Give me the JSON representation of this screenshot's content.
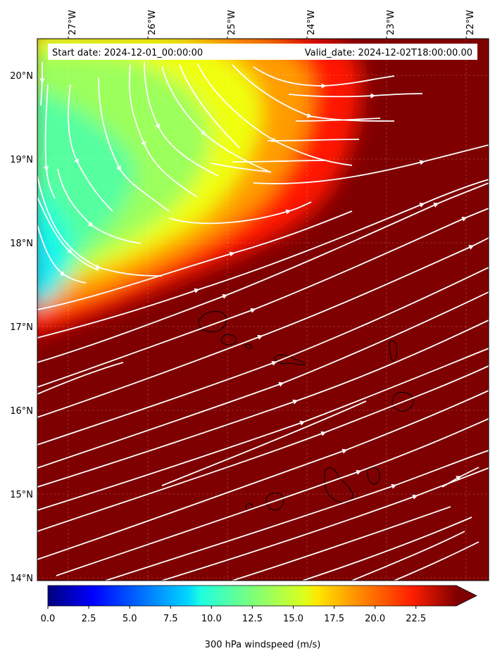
{
  "figure": {
    "start_label": "Start date: 2024-12-01_00:00:00",
    "valid_label": "Valid_date: 2024-12-02T18:00:00.00",
    "colorbar_label": "300 hPa windspeed (m/s)"
  },
  "map": {
    "lon_range": [
      -27.35,
      -21.6
    ],
    "lat_range": [
      13.95,
      20.4
    ],
    "lon_ticks": [
      {
        "value": -27,
        "label": "27°W"
      },
      {
        "value": -26,
        "label": "26°W"
      },
      {
        "value": -25,
        "label": "25°W"
      },
      {
        "value": -24,
        "label": "24°W"
      },
      {
        "value": -23,
        "label": "23°W"
      },
      {
        "value": -22,
        "label": "22°W"
      }
    ],
    "lat_ticks": [
      {
        "value": 20,
        "label": "20°N"
      },
      {
        "value": 19,
        "label": "19°N"
      },
      {
        "value": 18,
        "label": "18°N"
      },
      {
        "value": 17,
        "label": "17°N"
      },
      {
        "value": 16,
        "label": "16°N"
      },
      {
        "value": 15,
        "label": "15°N"
      },
      {
        "value": 14,
        "label": "14°N"
      }
    ],
    "gridlines": true,
    "coastlines": "Cape Verde islands",
    "streamline_color": "#ffffff"
  },
  "colorbar": {
    "min": 0,
    "max": 25,
    "extend": "max",
    "colormap": "jet",
    "ticks": [
      {
        "value": 0,
        "label": "0.0"
      },
      {
        "value": 2.5,
        "label": "2.5"
      },
      {
        "value": 5,
        "label": "5.0"
      },
      {
        "value": 7.5,
        "label": "7.5"
      },
      {
        "value": 10,
        "label": "10.0"
      },
      {
        "value": 12.5,
        "label": "12.5"
      },
      {
        "value": 15,
        "label": "15.0"
      },
      {
        "value": 17.5,
        "label": "17.5"
      },
      {
        "value": 20,
        "label": "20.0"
      },
      {
        "value": 22.5,
        "label": "22.5"
      }
    ]
  },
  "chart_data": {
    "type": "heatmap",
    "field": "300 hPa windspeed",
    "unit": "m/s",
    "range": [
      0,
      25
    ],
    "regions": [
      {
        "location": "northwest (26.8°W–25.5°W, 18.5°N–19.8°N)",
        "speed": 13
      },
      {
        "location": "west edge near 27.2°W, 17.4°N",
        "speed": 9
      },
      {
        "location": "central band (25°W–24.2°W, 18°N–19°N)",
        "speed": 16
      },
      {
        "location": "south and east of 17°N",
        "speed": 25
      }
    ]
  }
}
